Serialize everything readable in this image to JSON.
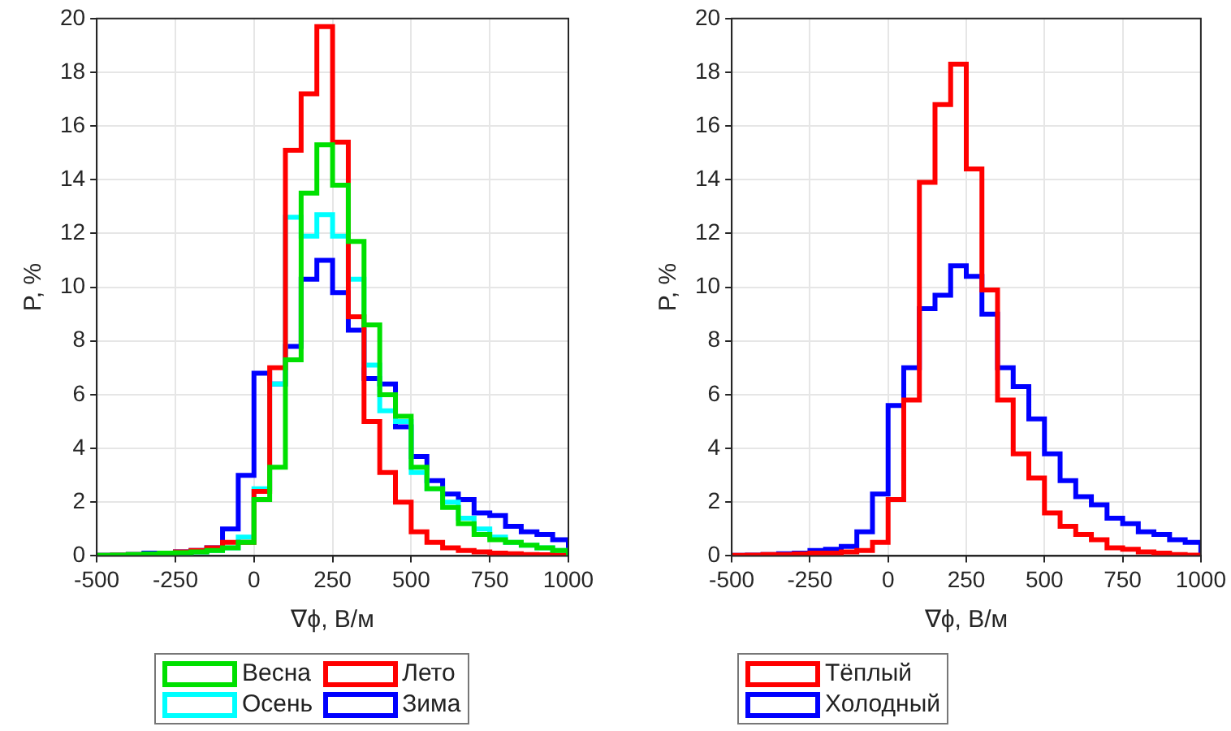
{
  "chart_data": [
    {
      "type": "histogram",
      "xlabel": "∇ϕ, В/м",
      "ylabel": "P, %",
      "bins": [
        -500,
        -450,
        -400,
        -350,
        -300,
        -250,
        -200,
        -150,
        -100,
        -50,
        0,
        50,
        100,
        150,
        200,
        250,
        300,
        350,
        400,
        450,
        500,
        550,
        600,
        650,
        700,
        750,
        800,
        850,
        900,
        950,
        1000
      ],
      "series": [
        {
          "name": "Весна",
          "color": "#00e000",
          "values": [
            0.02,
            0.03,
            0.05,
            0.07,
            0.1,
            0.12,
            0.15,
            0.2,
            0.3,
            0.5,
            2.1,
            3.3,
            7.3,
            13.5,
            15.3,
            13.8,
            11.7,
            8.6,
            6.0,
            5.2,
            3.3,
            2.5,
            1.8,
            1.2,
            0.8,
            0.6,
            0.5,
            0.4,
            0.3,
            0.2
          ]
        },
        {
          "name": "Лето",
          "color": "#ff0000",
          "values": [
            0.02,
            0.03,
            0.05,
            0.07,
            0.1,
            0.15,
            0.2,
            0.3,
            0.5,
            0.5,
            2.4,
            7.0,
            15.1,
            17.2,
            19.7,
            15.4,
            8.9,
            5.0,
            3.1,
            2.0,
            0.9,
            0.5,
            0.3,
            0.2,
            0.15,
            0.1,
            0.08,
            0.05,
            0.04,
            0.03
          ]
        },
        {
          "name": "Осень",
          "color": "#00ffff",
          "values": [
            0.02,
            0.03,
            0.05,
            0.07,
            0.1,
            0.12,
            0.15,
            0.2,
            0.3,
            0.7,
            2.5,
            6.4,
            12.6,
            11.9,
            12.7,
            11.9,
            10.3,
            7.1,
            5.4,
            5.0,
            3.1,
            2.5,
            2.0,
            1.4,
            1.0,
            0.7,
            0.5,
            0.4,
            0.3,
            0.2
          ]
        },
        {
          "name": "Зима",
          "color": "#0000ff",
          "values": [
            0.02,
            0.03,
            0.05,
            0.1,
            0.1,
            0.15,
            0.2,
            0.3,
            1.0,
            3.0,
            6.8,
            6.4,
            7.8,
            10.3,
            11.0,
            9.8,
            8.4,
            6.6,
            6.4,
            4.8,
            3.7,
            2.8,
            2.3,
            2.1,
            1.6,
            1.5,
            1.1,
            0.9,
            0.8,
            0.6
          ]
        }
      ],
      "xlim": [
        -500,
        1000
      ],
      "xticks": [
        -500,
        -250,
        0,
        250,
        500,
        750,
        1000
      ],
      "ylim": [
        0,
        20
      ],
      "yticks": [
        0,
        2,
        4,
        6,
        8,
        10,
        12,
        14,
        16,
        18,
        20
      ],
      "grid": true,
      "legend": "bottom",
      "line_style": "solid"
    },
    {
      "type": "histogram",
      "xlabel": "∇ϕ, В/м",
      "ylabel": "P, %",
      "bins": [
        -500,
        -450,
        -400,
        -350,
        -300,
        -250,
        -200,
        -150,
        -100,
        -50,
        0,
        50,
        100,
        150,
        200,
        250,
        300,
        350,
        400,
        450,
        500,
        550,
        600,
        650,
        700,
        750,
        800,
        850,
        900,
        950,
        1000
      ],
      "series": [
        {
          "name": "Тёплый",
          "color": "#ff0000",
          "values": [
            0.02,
            0.03,
            0.05,
            0.05,
            0.07,
            0.1,
            0.1,
            0.15,
            0.2,
            0.5,
            2.1,
            5.8,
            13.9,
            16.8,
            18.3,
            14.4,
            9.9,
            5.8,
            3.8,
            2.9,
            1.6,
            1.1,
            0.8,
            0.6,
            0.3,
            0.25,
            0.15,
            0.1,
            0.05,
            0.03
          ]
        },
        {
          "name": "Холодный",
          "color": "#0000ff",
          "values": [
            0.02,
            0.03,
            0.05,
            0.08,
            0.1,
            0.2,
            0.25,
            0.35,
            0.9,
            2.3,
            5.6,
            7.0,
            9.2,
            9.7,
            10.8,
            10.4,
            9.0,
            7.0,
            6.3,
            5.1,
            3.8,
            2.8,
            2.2,
            1.9,
            1.4,
            1.2,
            0.9,
            0.8,
            0.6,
            0.5
          ]
        }
      ],
      "xlim": [
        -500,
        1000
      ],
      "xticks": [
        -500,
        -250,
        0,
        250,
        500,
        750,
        1000
      ],
      "ylim": [
        0,
        20
      ],
      "yticks": [
        0,
        2,
        4,
        6,
        8,
        10,
        12,
        14,
        16,
        18,
        20
      ],
      "grid": true,
      "legend": "bottom",
      "line_style": "solid"
    }
  ]
}
